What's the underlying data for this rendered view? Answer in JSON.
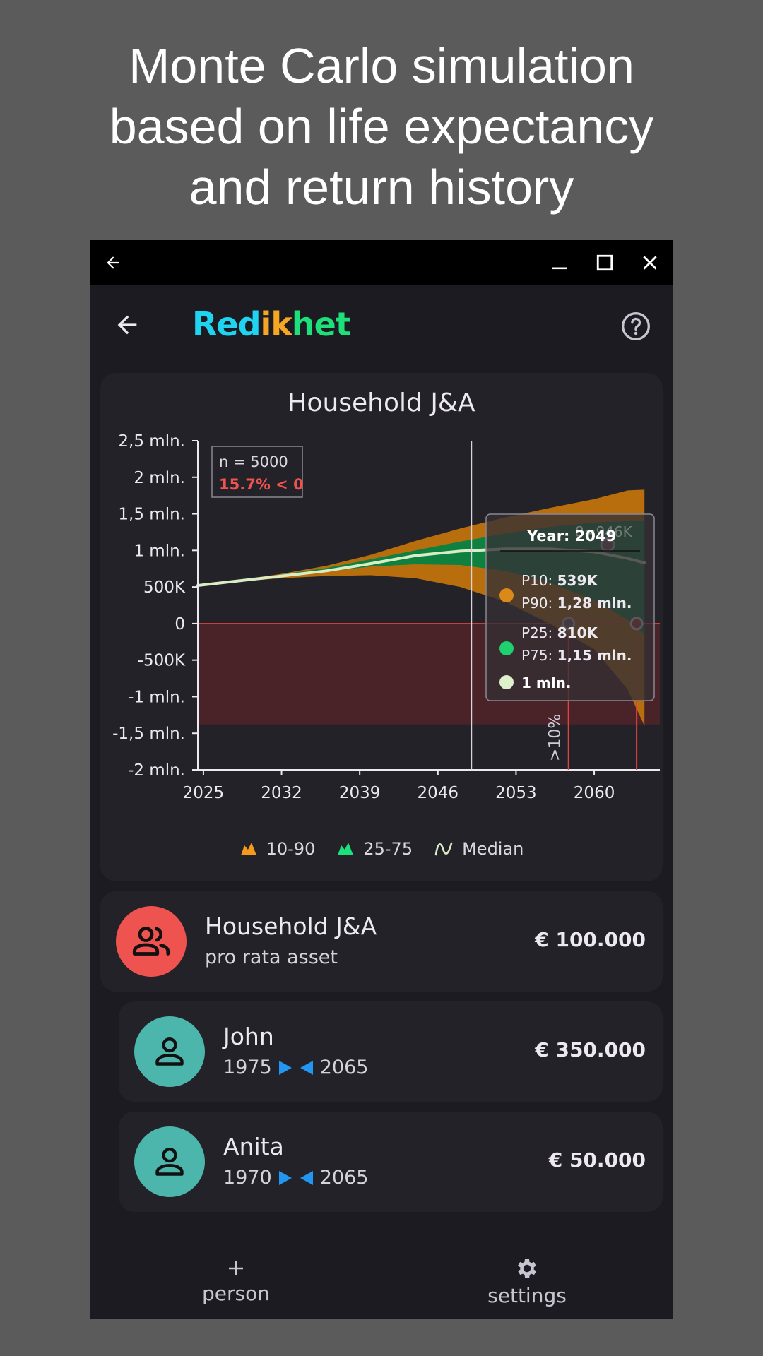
{
  "promo": {
    "line1": "Monte Carlo simulation",
    "line2": "based on life expectancy",
    "line3": "and return history"
  },
  "app": {
    "brand_parts": [
      {
        "text": "Red",
        "color": "#1fd4f0"
      },
      {
        "text": "ik",
        "color": "#f5a623"
      },
      {
        "text": "het",
        "color": "#1ee07a"
      }
    ],
    "icons": {
      "back": "back-arrow-icon",
      "help": "help-circle-icon",
      "minimize": "minimize-icon",
      "maximize": "maximize-icon",
      "close": "close-icon"
    }
  },
  "chart_card": {
    "title": "Household J&A",
    "stats_n": "n = 5000",
    "stats_neg": "15.7% < 0",
    "threshold_label": ">10%",
    "tooltip": {
      "year_label": "Year: 2049",
      "faded_label": "8=946K",
      "p10_label": "P10: ",
      "p10_value": "539K",
      "p90_label": "P90: ",
      "p90_value": "1,28 mln.",
      "p25_label": "P25: ",
      "p25_value": "810K",
      "p75_label": "P75: ",
      "p75_value": "1,15 mln.",
      "median_value": "1 mln."
    },
    "legend": [
      {
        "label": "10-90",
        "color": "#f59a1a",
        "icon": "area-icon"
      },
      {
        "label": "25-75",
        "color": "#1ee07a",
        "icon": "area-icon"
      },
      {
        "label": "Median",
        "color": "#d9ecc6",
        "icon": "line-icon"
      }
    ]
  },
  "chart_data": {
    "type": "area",
    "title": "Household J&A",
    "x_ticks": [
      "2025",
      "2032",
      "2039",
      "2046",
      "2053",
      "2060"
    ],
    "y_ticks": [
      "2,5 mln.",
      "2 mln.",
      "1,5 mln.",
      "1 mln.",
      "500K",
      "0",
      "-500K",
      "-1 mln.",
      "-1,5 mln.",
      "-2 mln."
    ],
    "xlim": [
      2024.5,
      2065.5
    ],
    "ylim": [
      -2000000,
      2500000
    ],
    "negative_band": [
      0,
      -1380000
    ],
    "x": [
      2024.5,
      2028,
      2032,
      2036,
      2040,
      2044,
      2048,
      2052,
      2056,
      2060,
      2063,
      2064.5
    ],
    "series": [
      {
        "name": "10-90",
        "color": "#b86e0c",
        "low": [
          520000,
          570000,
          620000,
          650000,
          660000,
          620000,
          500000,
          300000,
          0,
          -350000,
          -900000,
          -1400000
        ],
        "high": [
          520000,
          590000,
          680000,
          790000,
          940000,
          1130000,
          1300000,
          1450000,
          1580000,
          1700000,
          1820000,
          1830000
        ]
      },
      {
        "name": "25-75",
        "color": "#0e8140",
        "low": [
          520000,
          580000,
          640000,
          710000,
          780000,
          810000,
          800000,
          720000,
          560000,
          320000,
          50000,
          -150000
        ],
        "high": [
          520000,
          590000,
          670000,
          760000,
          880000,
          1000000,
          1120000,
          1230000,
          1320000,
          1380000,
          1400000,
          1400000
        ]
      },
      {
        "name": "Median",
        "color": "#d9ecc6",
        "values": [
          520000,
          580000,
          650000,
          720000,
          820000,
          930000,
          990000,
          1020000,
          1020000,
          980000,
          890000,
          830000
        ]
      }
    ],
    "cursor_x": 2049,
    "threshold_x": 2057.7,
    "end_x": 2063.8
  },
  "people": [
    {
      "name": "Household J&A",
      "sub": "pro rata asset",
      "amount": "€ 100.000",
      "avatar_color": "#ef5350",
      "icon": "group-icon"
    },
    {
      "name": "John",
      "birth": "1975",
      "death": "2065",
      "amount": "€ 350.000",
      "avatar_color": "#4db6ac",
      "icon": "person-icon"
    },
    {
      "name": "Anita",
      "birth": "1970",
      "death": "2065",
      "amount": "€ 50.000",
      "avatar_color": "#4db6ac",
      "icon": "person-icon"
    }
  ],
  "nav": {
    "person_label": "person",
    "settings_label": "settings"
  }
}
